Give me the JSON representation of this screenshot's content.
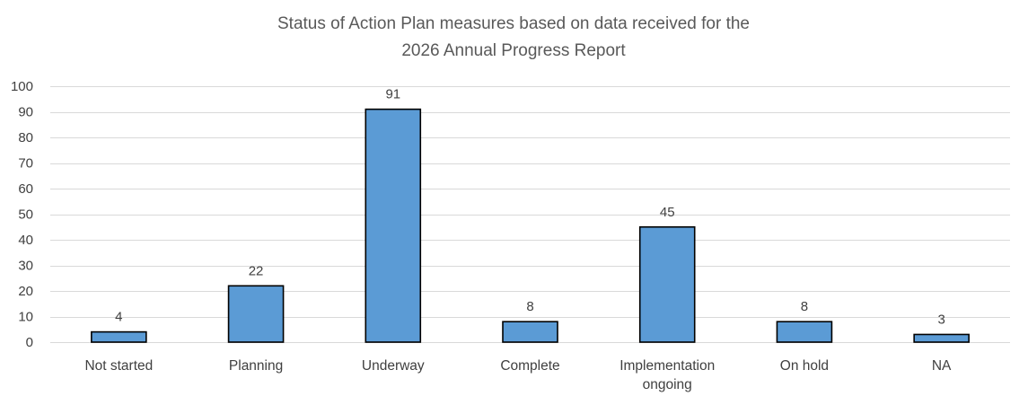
{
  "chart_data": {
    "type": "bar",
    "title": [
      "Status of Action Plan measures based on data received for the",
      "2026 Annual Progress Report"
    ],
    "categories": [
      "Not started",
      "Planning",
      "Underway",
      "Complete",
      "Implementation ongoing",
      "On hold",
      "NA"
    ],
    "category_lines": [
      [
        "Not started"
      ],
      [
        "Planning"
      ],
      [
        "Underway"
      ],
      [
        "Complete"
      ],
      [
        "Implementation",
        "ongoing"
      ],
      [
        "On hold"
      ],
      [
        "NA"
      ]
    ],
    "values": [
      4,
      22,
      91,
      8,
      45,
      8,
      3
    ],
    "xlabel": "",
    "ylabel": "",
    "ylim": [
      0,
      100
    ],
    "yticks": [
      0,
      10,
      20,
      30,
      40,
      50,
      60,
      70,
      80,
      90,
      100
    ],
    "grid": true,
    "legend": "none",
    "data_labels": true
  },
  "colors": {
    "bar_fill": "#5B9BD5",
    "bar_edge": "#000000",
    "grid": "#D9D9D9",
    "text": "#404040",
    "title": "#595959"
  }
}
